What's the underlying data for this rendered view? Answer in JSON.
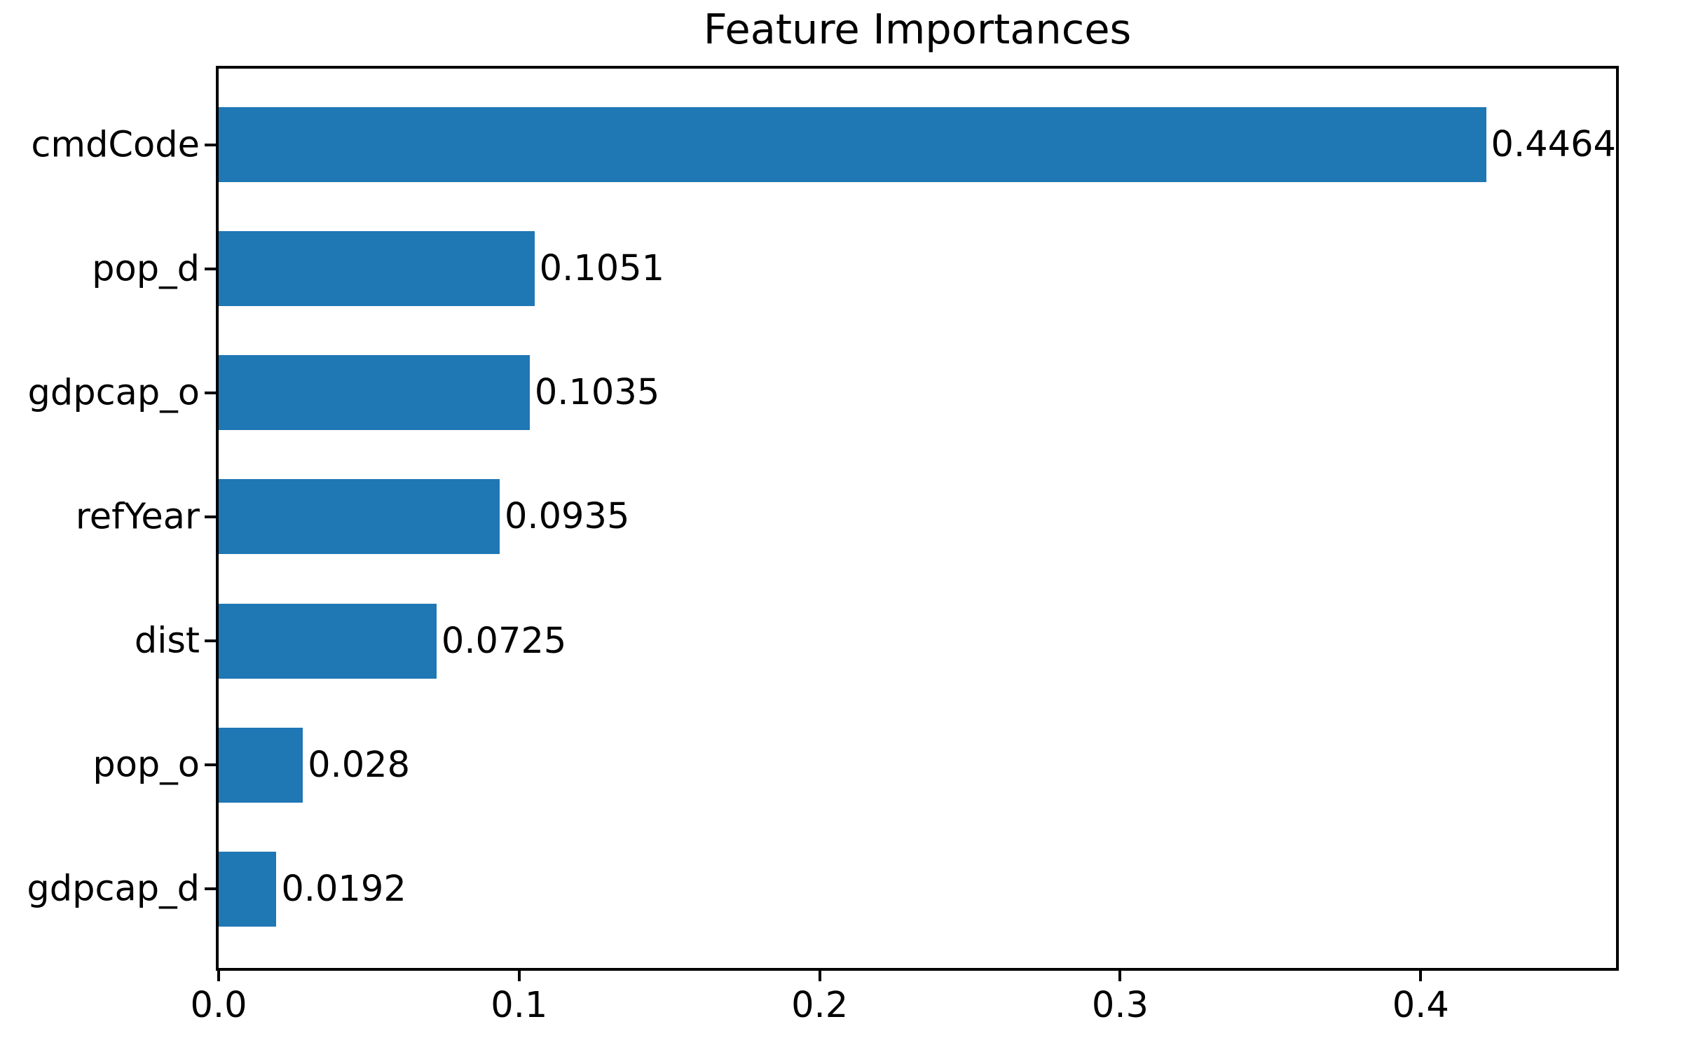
{
  "title": "Feature Importances",
  "chart_data": {
    "type": "bar",
    "orientation": "horizontal",
    "title": "Feature Importances",
    "categories": [
      "cmdCode",
      "pop_d",
      "gdpcap_o",
      "refYear",
      "dist",
      "pop_o",
      "gdpcap_d"
    ],
    "values": [
      0.4464,
      0.1051,
      0.1035,
      0.0935,
      0.0725,
      0.028,
      0.0192
    ],
    "value_labels": [
      "0.4464",
      "0.1051",
      "0.1035",
      "0.0935",
      "0.0725",
      "0.028",
      "0.0192"
    ],
    "xlabel": "",
    "ylabel": "",
    "xticks": [
      "0.0",
      "0.1",
      "0.2",
      "0.3",
      "0.4"
    ],
    "xtick_values": [
      0.0,
      0.1,
      0.2,
      0.3,
      0.4
    ],
    "xlim": [
      0,
      0.465
    ],
    "grid": false,
    "legend": null,
    "bar_color": "#1f77b4",
    "spine_color": "#000000",
    "background_color": "#ffffff"
  }
}
